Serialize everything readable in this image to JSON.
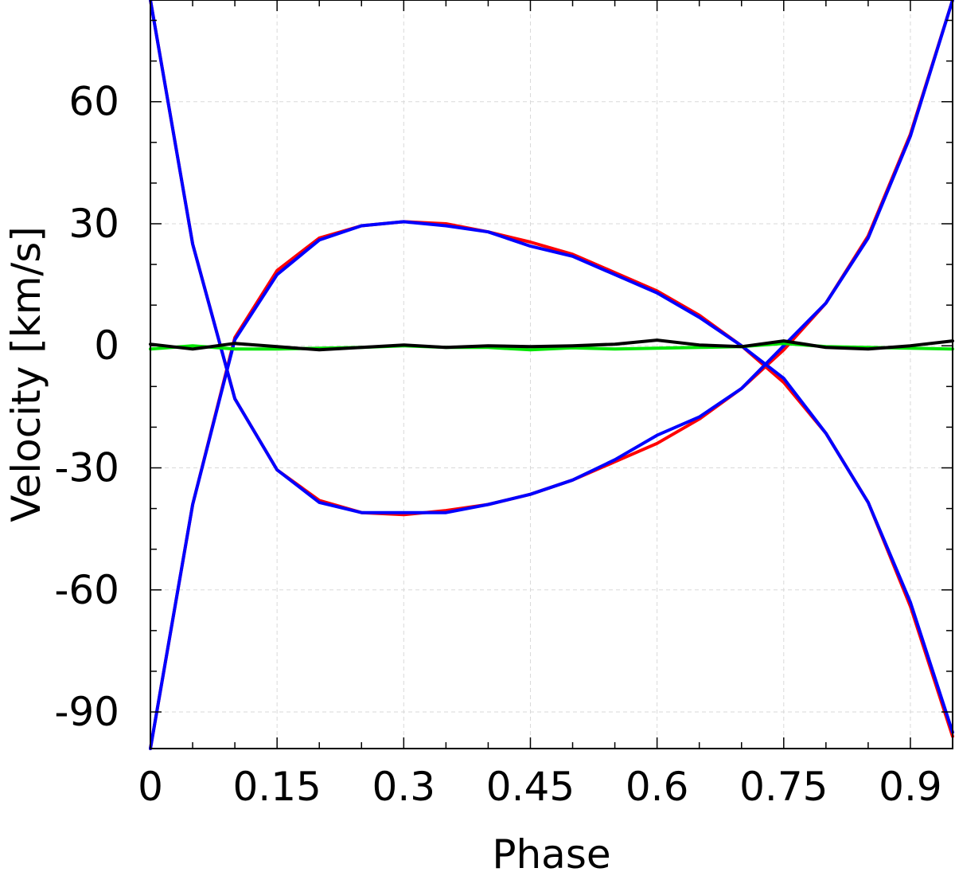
{
  "chart_data": {
    "type": "line",
    "title": "",
    "xlabel": "Phase",
    "ylabel": "Velocity [km/s]",
    "xlim": [
      0,
      0.95
    ],
    "ylim": [
      -99,
      85
    ],
    "xticks": [
      0,
      0.15,
      0.3,
      0.45,
      0.6,
      0.75,
      0.9
    ],
    "xtick_labels": [
      "0",
      "0.15",
      "0.3",
      "0.45",
      "0.6",
      "0.75",
      "0.9"
    ],
    "yticks": [
      -90,
      -60,
      -30,
      0,
      30,
      60
    ],
    "ytick_labels": [
      "-90",
      "-60",
      "-30",
      "0",
      "30",
      "60"
    ],
    "grid": true,
    "x": [
      0,
      0.05,
      0.1,
      0.15,
      0.2,
      0.25,
      0.3,
      0.35,
      0.4,
      0.45,
      0.5,
      0.55,
      0.6,
      0.65,
      0.7,
      0.75,
      0.8,
      0.85,
      0.9,
      0.95
    ],
    "series": [
      {
        "color": "#ff0000",
        "values": [
          85,
          25,
          -13,
          -30.5,
          -38,
          -41,
          -41.5,
          -40.5,
          -39,
          -36.5,
          -33,
          -28.5,
          -24,
          -18,
          -10.5,
          -1,
          10.5,
          27,
          52,
          85
        ]
      },
      {
        "color": "#ff0000",
        "values": [
          -99,
          -39,
          2,
          18.5,
          26.5,
          29.5,
          30.5,
          30,
          28,
          25.5,
          22.5,
          18,
          13.5,
          7.5,
          0,
          -9,
          -21.5,
          -38.5,
          -64,
          -96
        ]
      },
      {
        "color": "#0000ff",
        "values": [
          85,
          25,
          -13,
          -30.5,
          -38.5,
          -41,
          -41,
          -41,
          -39,
          -36.5,
          -33,
          -28,
          -22,
          -17.5,
          -10.5,
          0,
          10.5,
          26.5,
          51.5,
          85
        ]
      },
      {
        "color": "#0000ff",
        "values": [
          -99,
          -39,
          1.5,
          17.5,
          26,
          29.5,
          30.5,
          29.5,
          28,
          24.5,
          22,
          17.5,
          13,
          7,
          0,
          -8,
          -21.5,
          -38.5,
          -63,
          -95
        ]
      },
      {
        "color": "#00e600",
        "values": [
          -0.8,
          0,
          -0.8,
          -0.8,
          -0.6,
          -0.4,
          0,
          -0.4,
          -0.4,
          -1,
          -0.5,
          -0.8,
          -0.6,
          -0.4,
          -0.2,
          0.6,
          -0.2,
          -0.4,
          -0.6,
          -0.8
        ]
      },
      {
        "color": "#000000",
        "values": [
          0.4,
          -0.8,
          0.6,
          -0.2,
          -1,
          -0.4,
          0.2,
          -0.4,
          0,
          -0.2,
          0,
          0.4,
          1.4,
          0.2,
          -0.2,
          1.2,
          -0.4,
          -0.8,
          0,
          1.2
        ]
      }
    ]
  }
}
